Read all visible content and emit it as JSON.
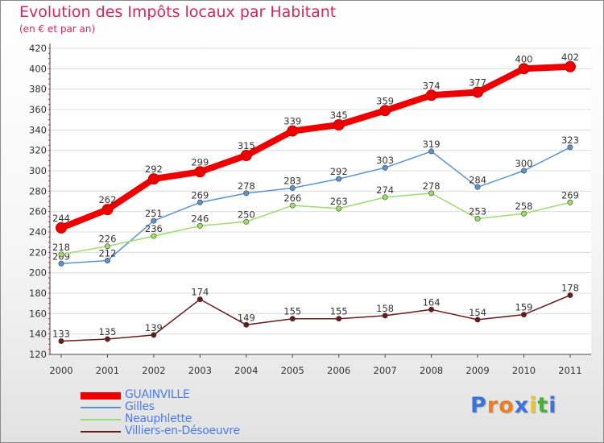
{
  "header": {
    "title": "Evolution des Impôts locaux par Habitant",
    "subtitle": "(en € et par an)"
  },
  "logo": {
    "letters": [
      "P",
      "r",
      "o",
      "x",
      "i",
      "t",
      "i"
    ],
    "colors": [
      "#3b73d9",
      "#f07e1e",
      "#f07e1e",
      "#3b73d9",
      "#f0c419",
      "#4caf3c",
      "#3b73d9"
    ]
  },
  "chart_data": {
    "type": "line",
    "title": "Evolution des Impôts locaux par Habitant",
    "subtitle": "(en € et par an)",
    "xlabel": "",
    "ylabel": "",
    "categories": [
      "2000",
      "2001",
      "2002",
      "2003",
      "2004",
      "2005",
      "2006",
      "2007",
      "2008",
      "2009",
      "2010",
      "2011"
    ],
    "ylim": [
      120,
      420
    ],
    "yticks": [
      120,
      140,
      160,
      180,
      200,
      220,
      240,
      260,
      280,
      300,
      320,
      340,
      360,
      380,
      400,
      420
    ],
    "grid": "horizontal",
    "legend_position": "bottom-left",
    "series": [
      {
        "name": "GUAINVILLE",
        "color": "#ee0000",
        "emphasis": true,
        "values": [
          244,
          262,
          292,
          299,
          315,
          339,
          345,
          359,
          374,
          377,
          400,
          402
        ]
      },
      {
        "name": "Gilles",
        "color": "#5b93cf",
        "emphasis": false,
        "values": [
          209,
          212,
          251,
          269,
          278,
          283,
          292,
          303,
          319,
          284,
          300,
          323
        ]
      },
      {
        "name": "Neauphlette",
        "color": "#9bdc6a",
        "emphasis": false,
        "values": [
          218,
          226,
          236,
          246,
          250,
          266,
          263,
          274,
          278,
          253,
          258,
          269
        ]
      },
      {
        "name": "Villiers-en-Désoeuvre",
        "color": "#6b1a1a",
        "emphasis": false,
        "values": [
          133,
          135,
          139,
          174,
          149,
          155,
          155,
          158,
          164,
          154,
          159,
          178
        ]
      }
    ]
  }
}
